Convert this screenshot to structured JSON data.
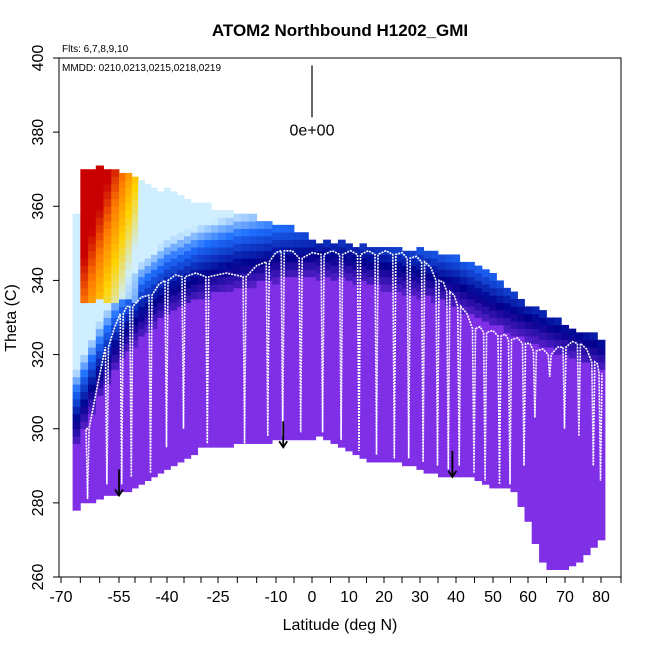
{
  "chart_data": {
    "type": "heatmap",
    "title": "ATOM2 Northbound H1202_GMI",
    "flights_note": "Flts: 6,7,8,9,10",
    "dates_note": "MMDD: 0210,0213,0215,0218,0219",
    "xlabel": "Latitude (deg N)",
    "ylabel": "Theta (C)",
    "xlim": [
      -70,
      85
    ],
    "ylim": [
      260,
      400
    ],
    "x_ticks": [
      -70,
      -55,
      -40,
      -25,
      -10,
      0,
      10,
      20,
      30,
      40,
      50,
      60,
      70,
      80
    ],
    "x_tick_labels": [
      "-70",
      "-55",
      "-40",
      "-25",
      "-10",
      "0",
      "10",
      "20",
      "30",
      "40",
      "50",
      "60",
      "70",
      "80"
    ],
    "y_ticks": [
      260,
      280,
      300,
      320,
      340,
      360,
      380,
      400
    ],
    "y_tick_labels": [
      "260",
      "280",
      "300",
      "320",
      "340",
      "360",
      "380",
      "400"
    ],
    "color_scale_marker_label": "0e+00",
    "colors": {
      "low": "#7f2fe6",
      "deep_blue": "#00008b",
      "blue": "#1e6fff",
      "light": "#cfeeff",
      "yellow": "#ffd400",
      "orange": "#ff7a00",
      "red": "#c80000",
      "trajectory": "#ffffff"
    },
    "domain": {
      "lat": [
        -67,
        -64,
        -55,
        -48,
        -30,
        -10,
        2,
        15,
        25,
        35,
        45,
        50,
        55,
        60,
        65,
        70,
        75,
        80
      ],
      "theta_bottom": [
        277,
        280,
        283,
        285,
        295,
        297,
        298,
        292,
        291,
        288,
        287,
        284,
        285,
        275,
        262,
        262,
        265,
        270
      ],
      "theta_top": [
        352,
        370,
        368,
        366,
        360,
        355,
        350,
        348,
        348,
        347,
        344,
        341,
        337,
        333,
        330,
        327,
        325,
        324
      ]
    },
    "tropopause_theta": {
      "lat": [
        -67,
        -60,
        -55,
        -48,
        -40,
        -30,
        -20,
        -10,
        0,
        10,
        20,
        30,
        40,
        50,
        60,
        70,
        80
      ],
      "theta": [
        300,
        315,
        324,
        331,
        337,
        341,
        344,
        346,
        347,
        346,
        344,
        342,
        339,
        334,
        330,
        326,
        322
      ]
    },
    "hot_region": {
      "lat": [
        -64,
        -50
      ],
      "theta": [
        335,
        370
      ]
    },
    "profiles_lat": [
      -63,
      -58,
      -54,
      -51,
      -45,
      -40,
      -35,
      -28,
      -18,
      -12,
      -8,
      -3,
      3,
      8,
      13,
      18,
      23,
      27,
      31,
      35,
      38,
      41,
      45,
      48,
      52,
      55,
      59,
      62,
      66,
      70,
      74,
      78,
      80
    ],
    "profiles_bottom": [
      281,
      285,
      285,
      287,
      288,
      295,
      300,
      296,
      296,
      298,
      298,
      299,
      299,
      297,
      294,
      293,
      292,
      292,
      291,
      290,
      289,
      290,
      288,
      286,
      285,
      285,
      290,
      303,
      314,
      300,
      298,
      290,
      286
    ],
    "profiles_top": [
      300,
      322,
      331,
      333,
      336,
      340,
      341,
      341,
      341,
      345,
      348,
      346,
      347,
      347,
      347,
      347,
      347,
      346,
      345,
      340,
      337,
      333,
      327,
      326,
      325,
      324,
      323,
      321,
      320,
      322,
      323,
      318,
      315
    ],
    "arrow_lats": [
      -55,
      -8,
      39
    ],
    "arrow_theta": [
      289,
      302,
      294
    ],
    "arrow_length_theta": 7,
    "marker_lat": 0,
    "marker_theta": [
      384,
      398
    ]
  }
}
